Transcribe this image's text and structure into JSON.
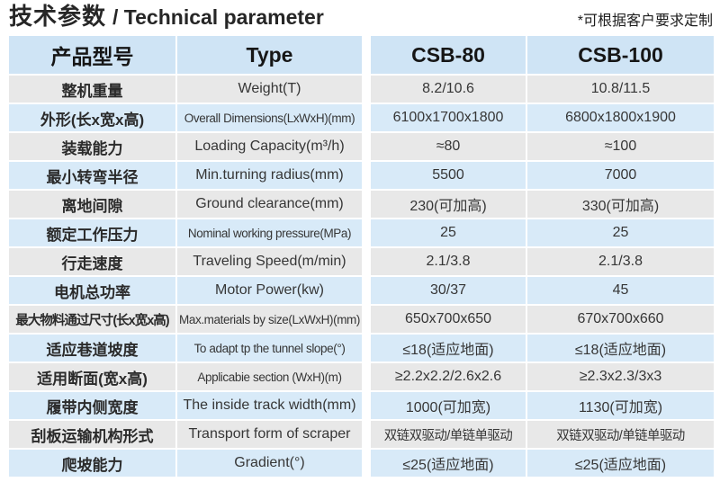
{
  "title": {
    "cn": "技术参数",
    "en": "/ Technical parameter"
  },
  "note": "*可根据客户要求定制",
  "colors": {
    "header_bg": "#cfe4f5",
    "row_blue": "#d8eaf8",
    "row_gray": "#e8e8e8",
    "text": "#363636"
  },
  "table": {
    "headers": {
      "model": "产品型号",
      "type": "Type",
      "csb80": "CSB-80",
      "csb100": "CSB-100"
    },
    "rows": [
      {
        "cn": "整机重量",
        "en": "Weight(T)",
        "csb80": "8.2/10.6",
        "csb100": "10.8/11.5"
      },
      {
        "cn": "外形(长x宽x高)",
        "en": "Overall Dimensions(LxWxH)(mm)",
        "csb80": "6100x1700x1800",
        "csb100": "6800x1800x1900"
      },
      {
        "cn": "装载能力",
        "en": "Loading Capacity(m³/h)",
        "csb80": "≈80",
        "csb100": "≈100"
      },
      {
        "cn": "最小转弯半径",
        "en": "Min.turning radius(mm)",
        "csb80": "5500",
        "csb100": "7000"
      },
      {
        "cn": "离地间隙",
        "en": "Ground clearance(mm)",
        "csb80": "230(可加高)",
        "csb100": "330(可加高)"
      },
      {
        "cn": "额定工作压力",
        "en": "Nominal working pressure(MPa)",
        "csb80": "25",
        "csb100": "25"
      },
      {
        "cn": "行走速度",
        "en": "Traveling Speed(m/min)",
        "csb80": "2.1/3.8",
        "csb100": "2.1/3.8"
      },
      {
        "cn": "电机总功率",
        "en": "Motor Power(kw)",
        "csb80": "30/37",
        "csb100": "45"
      },
      {
        "cn": "最大物料通过尺寸(长x宽x高)",
        "en": "Max.materials by size(LxWxH)(mm)",
        "csb80": "650x700x650",
        "csb100": "670x700x660"
      },
      {
        "cn": "适应巷道坡度",
        "en": "To adapt tp the tunnel slope(°)",
        "csb80": "≤18(适应地面)",
        "csb100": "≤18(适应地面)"
      },
      {
        "cn": "适用断面(宽x高)",
        "en": "Applicabie section (WxH)(m)",
        "csb80": "≥2.2x2.2/2.6x2.6",
        "csb100": "≥2.3x2.3/3x3"
      },
      {
        "cn": "履带内侧宽度",
        "en": "The inside track width(mm)",
        "csb80": "1000(可加宽)",
        "csb100": "1130(可加宽)"
      },
      {
        "cn": "刮板运输机构形式",
        "en": "Transport form of scraper",
        "csb80": "双链双驱动/单链单驱动",
        "csb100": "双链双驱动/单链单驱动"
      },
      {
        "cn": "爬坡能力",
        "en": "Gradient(°)",
        "csb80": "≤25(适应地面)",
        "csb100": "≤25(适应地面)"
      }
    ]
  }
}
